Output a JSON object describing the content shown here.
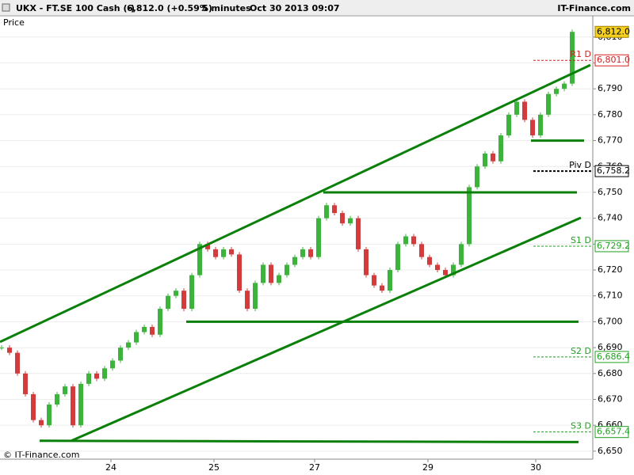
{
  "chart_data": {
    "type": "candlestick",
    "title": "UKX - FT.SE 100 Cash (-)",
    "last_price_text": "6,812.0 (+0.59%)",
    "interval": "5 minutes",
    "timestamp": "Oct 30 2013 09:07",
    "brand": "IT-Finance.com",
    "y_label": "Price",
    "copyright": "© IT-Finance.com",
    "up_color": "#3cb43c",
    "down_color": "#d23c3c",
    "line_color": "#0a800a",
    "grid": true,
    "xlim": [
      -0.2,
      74.6
    ],
    "xticks": [
      {
        "value": 13.8,
        "label": "24"
      },
      {
        "value": 26.8,
        "label": "25"
      },
      {
        "value": 39.5,
        "label": "27"
      },
      {
        "value": 53.8,
        "label": "29"
      },
      {
        "value": 67.4,
        "label": "30"
      }
    ],
    "ylim": [
      6646.9,
      6818.2
    ],
    "yticks": [
      {
        "value": 6650,
        "label": "6,650"
      },
      {
        "value": 6660,
        "label": "6,660"
      },
      {
        "value": 6670,
        "label": "6,670"
      },
      {
        "value": 6680,
        "label": "6,680"
      },
      {
        "value": 6690,
        "label": "6,690"
      },
      {
        "value": 6700,
        "label": "6,700"
      },
      {
        "value": 6710,
        "label": "6,710"
      },
      {
        "value": 6720,
        "label": "6,720"
      },
      {
        "value": 6730,
        "label": "6,730"
      },
      {
        "value": 6740,
        "label": "6,740"
      },
      {
        "value": 6750,
        "label": "6,750"
      },
      {
        "value": 6760,
        "label": "6,760"
      },
      {
        "value": 6770,
        "label": "6,770"
      },
      {
        "value": 6780,
        "label": "6,780"
      },
      {
        "value": 6790,
        "label": "6,790"
      },
      {
        "value": 6800,
        "label": "6,800"
      },
      {
        "value": 6810,
        "label": "6,810"
      }
    ],
    "series": [
      {
        "name": "Price",
        "values": [
          6690,
          6688,
          6680,
          6672,
          6662,
          6660,
          6668,
          6672,
          6675,
          6660,
          6676,
          6680,
          6678,
          6682,
          6685,
          6690,
          6692,
          6696,
          6698,
          6695,
          6705,
          6710,
          6712,
          6705,
          6718,
          6730,
          6728,
          6725,
          6728,
          6726,
          6712,
          6705,
          6715,
          6722,
          6715,
          6718,
          6722,
          6725,
          6728,
          6725,
          6740,
          6745,
          6742,
          6738,
          6740,
          6728,
          6718,
          6714,
          6712,
          6720,
          6730,
          6733,
          6730,
          6725,
          6722,
          6720,
          6718,
          6722,
          6730,
          6752,
          6760,
          6765,
          6762,
          6772,
          6780,
          6785,
          6778,
          6772,
          6780,
          6788,
          6790,
          6792,
          6812
        ]
      }
    ],
    "trend_lines": [
      {
        "x": [
          -0.2,
          74.3
        ],
        "y": [
          6692.2,
          6799.2
        ]
      },
      {
        "x": [
          8.8,
          73.1
        ],
        "y": [
          6654.0,
          6740.2
        ]
      },
      {
        "x": [
          4.8,
          72.8
        ],
        "y": [
          6654.0,
          6653.5
        ]
      },
      {
        "x": [
          23.3,
          72.8
        ],
        "y": [
          6700.0,
          6700.0
        ]
      },
      {
        "x": [
          40.6,
          72.6
        ],
        "y": [
          6750.0,
          6750.0
        ]
      },
      {
        "x": [
          66.8,
          73.5
        ],
        "y": [
          6770.0,
          6770.0
        ]
      }
    ],
    "levels": [
      {
        "name": "R1 D",
        "value": 6801.0,
        "label": "6,801.0",
        "color": "#d22020"
      },
      {
        "name": "Piv D",
        "value": 6758.2,
        "label": "6,758.2",
        "color": "#000000"
      },
      {
        "name": "S1 D",
        "value": 6729.2,
        "label": "6,729.2",
        "color": "#20a020"
      },
      {
        "name": "S2 D",
        "value": 6686.4,
        "label": "6,686.4",
        "color": "#20a020"
      },
      {
        "name": "S3 D",
        "value": 6657.4,
        "label": "6,657.4",
        "color": "#20a020"
      }
    ],
    "last_price": {
      "value": 6812.0,
      "label": "6,812.0"
    }
  }
}
